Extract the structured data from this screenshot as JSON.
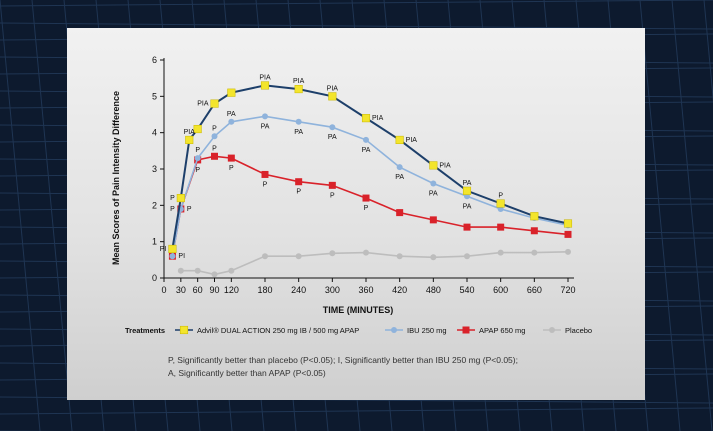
{
  "chart_data": {
    "type": "line",
    "xlabel": "TIME (MINUTES)",
    "ylabel": "Mean Scores of Pain Intensity Difference",
    "x": [
      0,
      30,
      60,
      90,
      120,
      180,
      240,
      300,
      360,
      420,
      480,
      540,
      600,
      660,
      720
    ],
    "xticks": [
      "0",
      "30",
      "60",
      "90",
      "120",
      "180",
      "240",
      "300",
      "360",
      "420",
      "480",
      "540",
      "600",
      "660",
      "720"
    ],
    "xlim": [
      0,
      720
    ],
    "ylim": [
      0,
      6
    ],
    "yticks": [
      "0",
      "1",
      "2",
      "3",
      "4",
      "5",
      "6"
    ],
    "legend_title": "Treatments",
    "legend_position": "bottom",
    "series": [
      {
        "name": "Advil® DUAL ACTION 250 mg IB / 500 mg APAP",
        "color": "#1d3f6a",
        "marker_color": "#f3e52c",
        "marker": "diamond",
        "x": [
          15,
          30,
          45,
          60,
          90,
          120,
          180,
          240,
          300,
          360,
          420,
          480,
          540,
          600,
          660,
          720
        ],
        "values": [
          0.8,
          2.2,
          3.8,
          4.1,
          4.8,
          5.1,
          5.3,
          5.2,
          5.0,
          4.4,
          3.8,
          3.1,
          2.4,
          2.05,
          1.7,
          1.5
        ]
      },
      {
        "name": "IBU 250 mg",
        "color": "#8fb3dc",
        "marker_color": "#8fb3dc",
        "marker": "circle",
        "x": [
          15,
          30,
          60,
          90,
          120,
          180,
          240,
          300,
          360,
          420,
          480,
          540,
          600,
          660,
          720
        ],
        "values": [
          0.6,
          1.9,
          3.3,
          3.9,
          4.3,
          4.45,
          4.3,
          4.15,
          3.8,
          3.05,
          2.6,
          2.25,
          1.9,
          1.65,
          1.45
        ]
      },
      {
        "name": "APAP 650 mg",
        "color": "#d9222a",
        "marker_color": "#d9222a",
        "marker": "square",
        "x": [
          15,
          30,
          60,
          90,
          120,
          180,
          240,
          300,
          360,
          420,
          480,
          540,
          600,
          660,
          720
        ],
        "values": [
          0.6,
          1.9,
          3.25,
          3.35,
          3.3,
          2.85,
          2.65,
          2.55,
          2.2,
          1.8,
          1.6,
          1.4,
          1.4,
          1.3,
          1.2
        ]
      },
      {
        "name": "Placebo",
        "color": "#bdbdbd",
        "marker_color": "#bdbdbd",
        "marker": "circle",
        "x": [
          30,
          60,
          90,
          120,
          180,
          240,
          300,
          360,
          420,
          480,
          540,
          600,
          660,
          720
        ],
        "values": [
          0.2,
          0.2,
          0.1,
          0.2,
          0.6,
          0.6,
          0.68,
          0.7,
          0.6,
          0.57,
          0.6,
          0.7,
          0.7,
          0.72
        ]
      }
    ],
    "annotations": [
      {
        "text": "PI",
        "x": 15,
        "y": 0.8,
        "pos": "left"
      },
      {
        "text": "PI",
        "x": 15,
        "y": 0.6,
        "pos": "right"
      },
      {
        "text": "P",
        "x": 30,
        "y": 2.2,
        "pos": "left"
      },
      {
        "text": "P",
        "x": 30,
        "y": 1.9,
        "pos": "left"
      },
      {
        "text": "P",
        "x": 30,
        "y": 1.9,
        "pos": "right"
      },
      {
        "text": "PIA",
        "x": 45,
        "y": 3.8,
        "pos": "above"
      },
      {
        "text": "P",
        "x": 60,
        "y": 3.3,
        "pos": "above"
      },
      {
        "text": "P",
        "x": 60,
        "y": 3.25,
        "pos": "below"
      },
      {
        "text": "PIA",
        "x": 90,
        "y": 4.8,
        "pos": "left"
      },
      {
        "text": "P",
        "x": 90,
        "y": 3.9,
        "pos": "above"
      },
      {
        "text": "P",
        "x": 90,
        "y": 3.35,
        "pos": "above"
      },
      {
        "text": "PA",
        "x": 120,
        "y": 4.3,
        "pos": "above"
      },
      {
        "text": "P",
        "x": 120,
        "y": 3.3,
        "pos": "below"
      },
      {
        "text": "PIA",
        "x": 180,
        "y": 5.3,
        "pos": "above"
      },
      {
        "text": "PA",
        "x": 180,
        "y": 4.45,
        "pos": "below"
      },
      {
        "text": "P",
        "x": 180,
        "y": 2.85,
        "pos": "below"
      },
      {
        "text": "PIA",
        "x": 240,
        "y": 5.2,
        "pos": "above"
      },
      {
        "text": "PA",
        "x": 240,
        "y": 4.3,
        "pos": "below"
      },
      {
        "text": "P",
        "x": 240,
        "y": 2.65,
        "pos": "below"
      },
      {
        "text": "PIA",
        "x": 300,
        "y": 5.0,
        "pos": "above"
      },
      {
        "text": "PA",
        "x": 300,
        "y": 4.15,
        "pos": "below"
      },
      {
        "text": "P",
        "x": 300,
        "y": 2.55,
        "pos": "below"
      },
      {
        "text": "PIA",
        "x": 360,
        "y": 4.4,
        "pos": "right"
      },
      {
        "text": "PA",
        "x": 360,
        "y": 3.8,
        "pos": "below"
      },
      {
        "text": "P",
        "x": 360,
        "y": 2.2,
        "pos": "below"
      },
      {
        "text": "PIA",
        "x": 420,
        "y": 3.8,
        "pos": "right"
      },
      {
        "text": "PA",
        "x": 420,
        "y": 3.05,
        "pos": "below"
      },
      {
        "text": "PIA",
        "x": 480,
        "y": 3.1,
        "pos": "right"
      },
      {
        "text": "PA",
        "x": 480,
        "y": 2.6,
        "pos": "below"
      },
      {
        "text": "PA",
        "x": 540,
        "y": 2.4,
        "pos": "above"
      },
      {
        "text": "PA",
        "x": 540,
        "y": 2.25,
        "pos": "below"
      },
      {
        "text": "P",
        "x": 600,
        "y": 2.05,
        "pos": "above"
      }
    ]
  },
  "footnote": {
    "line1": "P, Significantly better than placebo (P<0.05); I, Significantly better than IBU 250 mg (P<0.05);",
    "line2": "A, Significantly better than APAP (P<0.05)"
  }
}
